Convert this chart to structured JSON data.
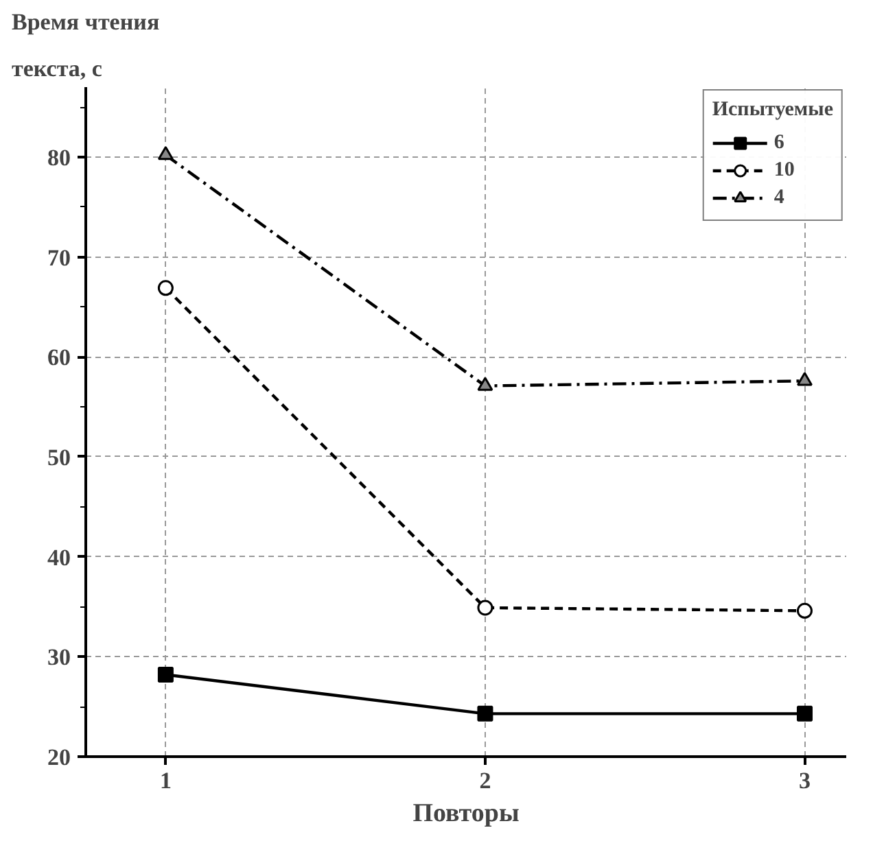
{
  "chart_data": {
    "type": "line",
    "ylabel": "Время чтения\nтекста, с",
    "xlabel": "Повторы",
    "legend_title": "Испытуемые",
    "legend": "top right",
    "grid": true,
    "x": [
      1,
      2,
      3
    ],
    "xlim": [
      0.75,
      3.13
    ],
    "xticks": [
      1,
      2,
      3
    ],
    "ylim": [
      20,
      87
    ],
    "yticks": [
      20,
      30,
      40,
      50,
      60,
      70,
      80
    ],
    "series": [
      {
        "name": "6",
        "color": "#000000",
        "marker": "square",
        "line_style": "solid",
        "values": [
          28.2,
          24.3,
          24.3
        ]
      },
      {
        "name": "10",
        "color": "#000000",
        "marker": "circle",
        "line_style": "dashed",
        "values": [
          66.9,
          34.9,
          34.6
        ]
      },
      {
        "name": "4",
        "color": "#000000",
        "marker": "triangle",
        "line_style": "dashdot",
        "values": [
          80.2,
          57.1,
          57.6
        ]
      }
    ]
  }
}
